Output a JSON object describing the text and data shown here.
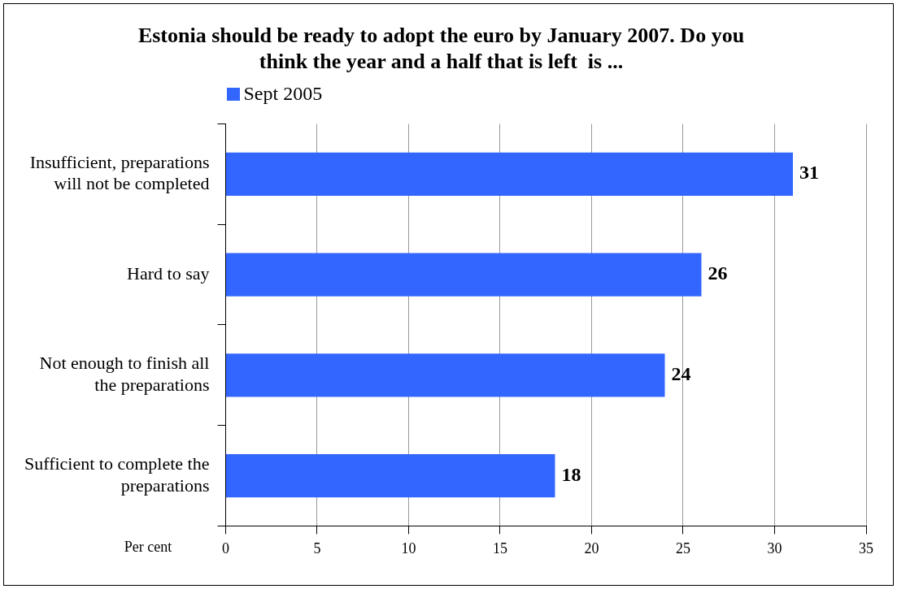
{
  "chart_data": {
    "type": "bar",
    "orientation": "horizontal",
    "title": "Estonia should be ready to adopt the euro by January 2007. Do you think the year and a half that is left  is ...",
    "xlabel": "Per cent",
    "categories": [
      "Insufficient, preparations will not be completed",
      "Hard to say",
      "Not enough to finish all the preparations",
      "Sufficient to complete the preparations"
    ],
    "series": [
      {
        "name": "Sept 2005",
        "color": "#3366ff",
        "values": [
          31,
          26,
          24,
          18
        ]
      }
    ],
    "xlim": [
      0,
      35
    ],
    "xticks": [
      0,
      5,
      10,
      15,
      20,
      25,
      30,
      35
    ],
    "grid": "x",
    "legend": "top left",
    "data_labels": true
  }
}
